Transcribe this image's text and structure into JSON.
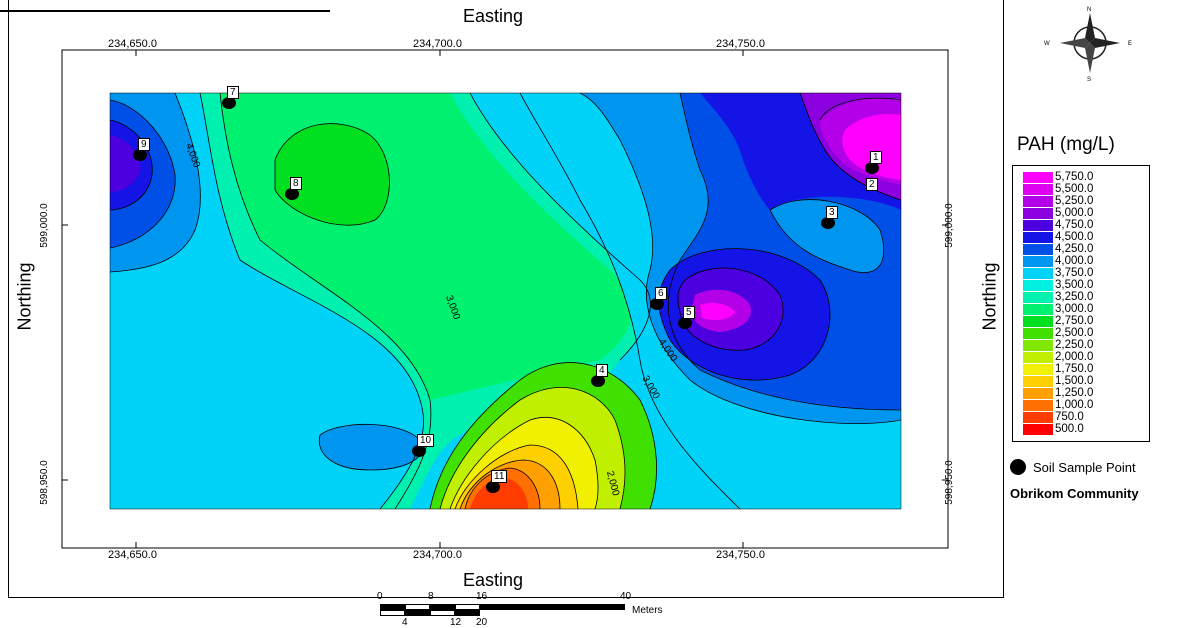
{
  "map": {
    "x_axis_title": "Easting",
    "y_axis_title": "Northing",
    "x_ticks": [
      "234,650.0",
      "234,700.0",
      "234,750.0"
    ],
    "y_ticks": [
      "599,000.0",
      "598,950.0"
    ],
    "contour_labels": [
      "4,000",
      "3,000",
      "3,000",
      "2,000",
      "4,000",
      "3,000"
    ]
  },
  "legend": {
    "title": "PAH (mg/L)",
    "levels": [
      {
        "label": "5,750.0",
        "color": "#ff00ff"
      },
      {
        "label": "5,500.0",
        "color": "#dd00f0"
      },
      {
        "label": "5,250.0",
        "color": "#b400e8"
      },
      {
        "label": "5,000.0",
        "color": "#8c00e0"
      },
      {
        "label": "4,750.0",
        "color": "#4c00e0"
      },
      {
        "label": "4,500.0",
        "color": "#1414e6"
      },
      {
        "label": "4,250.0",
        "color": "#0050e8"
      },
      {
        "label": "4,000.0",
        "color": "#0096f0"
      },
      {
        "label": "3,750.0",
        "color": "#00d2f8"
      },
      {
        "label": "3,500.0",
        "color": "#00f0e0"
      },
      {
        "label": "3,250.0",
        "color": "#00f0b0"
      },
      {
        "label": "3,000.0",
        "color": "#00f070"
      },
      {
        "label": "2,750.0",
        "color": "#00e020"
      },
      {
        "label": "2,500.0",
        "color": "#40e000"
      },
      {
        "label": "2,250.0",
        "color": "#80e800"
      },
      {
        "label": "2,000.0",
        "color": "#c0f000"
      },
      {
        "label": "1,750.0",
        "color": "#f0f000"
      },
      {
        "label": "1,500.0",
        "color": "#ffd000"
      },
      {
        "label": "1,250.0",
        "color": "#ffa000"
      },
      {
        "label": "1,000.0",
        "color": "#ff7000"
      },
      {
        "label": "750.0",
        "color": "#ff3c00"
      },
      {
        "label": "500.0",
        "color": "#ff0000"
      }
    ],
    "sample_point_label": "Soil Sample Point",
    "community_label": "Obrikom Community"
  },
  "samples": [
    {
      "id": "1",
      "label": "1"
    },
    {
      "id": "2",
      "label": "2"
    },
    {
      "id": "3",
      "label": "3"
    },
    {
      "id": "4",
      "label": "4"
    },
    {
      "id": "5",
      "label": "5"
    },
    {
      "id": "6",
      "label": "6"
    },
    {
      "id": "7",
      "label": "7"
    },
    {
      "id": "8",
      "label": "8"
    },
    {
      "id": "9",
      "label": "9"
    },
    {
      "id": "10",
      "label": "10"
    },
    {
      "id": "11",
      "label": "11"
    }
  ],
  "compass": {
    "n": "N",
    "s": "S",
    "e": "E",
    "w": "W"
  },
  "scalebar": {
    "labels": [
      "0",
      "8",
      "16",
      "40",
      "4",
      "12",
      "20"
    ],
    "unit": "Meters"
  }
}
